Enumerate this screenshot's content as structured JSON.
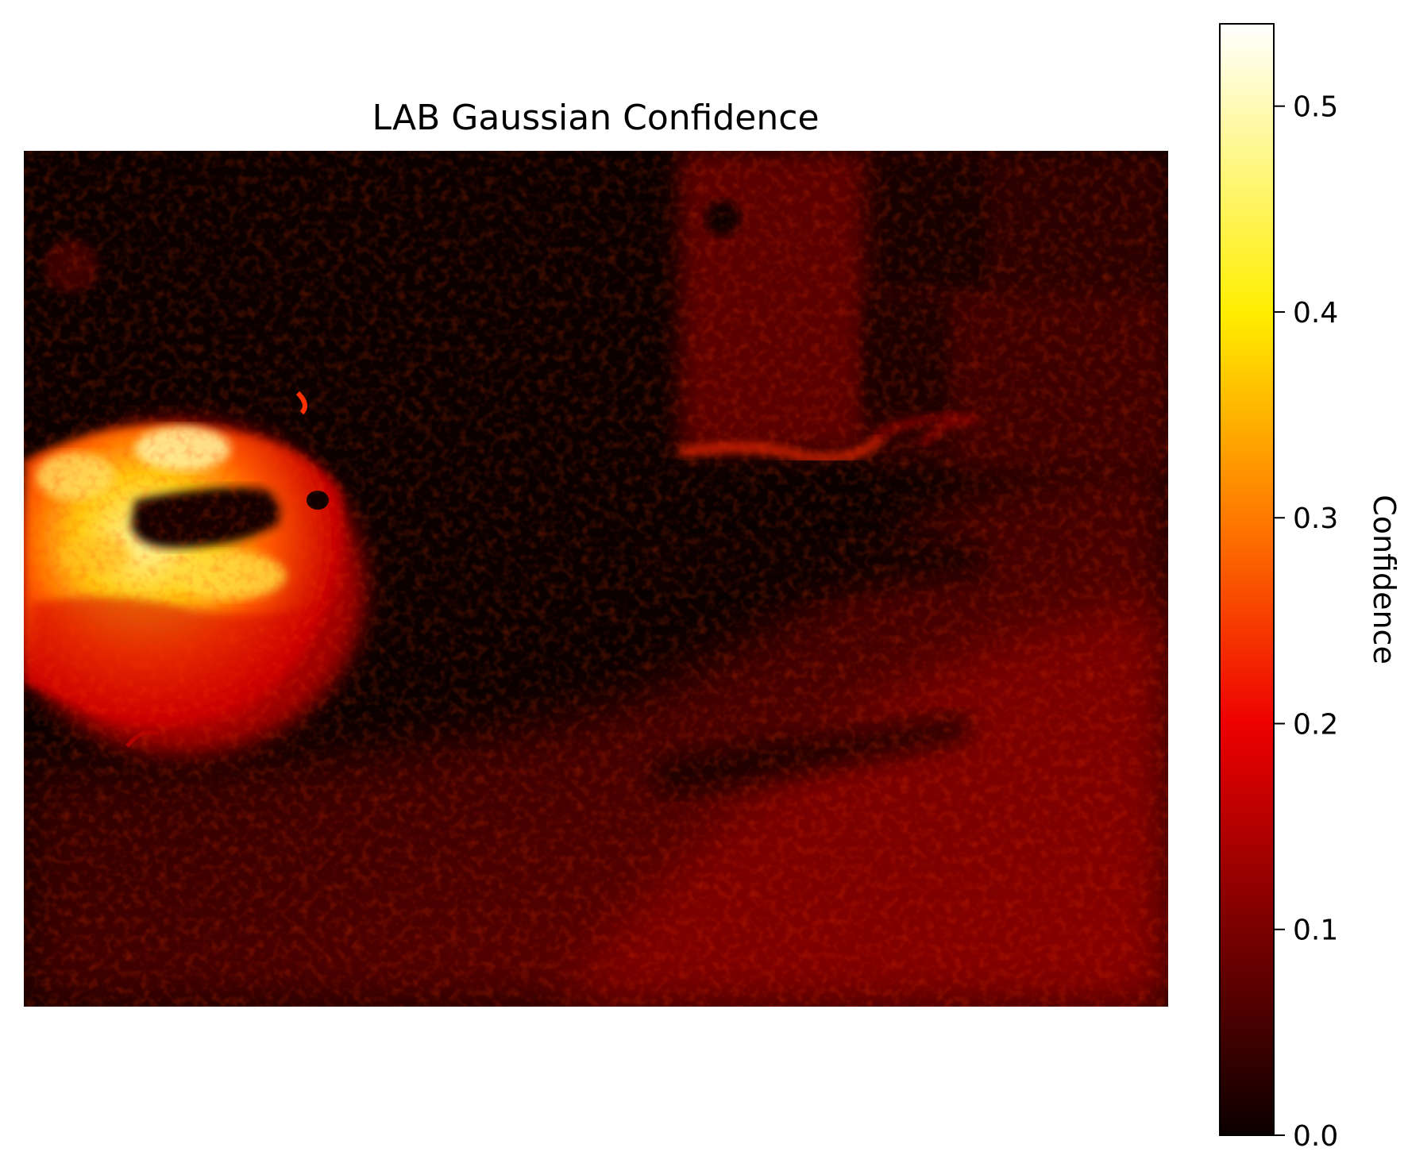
{
  "chart_data": {
    "type": "heatmap",
    "title": "LAB Gaussian Confidence",
    "colormap": "hot",
    "axes_visible": false,
    "colorbar": {
      "label": "Confidence",
      "range": [
        0.0,
        0.54
      ],
      "ticks": [
        0.0,
        0.1,
        0.2,
        0.3,
        0.4,
        0.5
      ],
      "tick_labels": [
        "0.0",
        "0.1",
        "0.2",
        "0.3",
        "0.4",
        "0.5"
      ],
      "stops": [
        {
          "value": 0.0,
          "color": "#0b0000"
        },
        {
          "value": 0.1,
          "color": "#7a0000"
        },
        {
          "value": 0.2,
          "color": "#ee0000"
        },
        {
          "value": 0.3,
          "color": "#ff7a00"
        },
        {
          "value": 0.4,
          "color": "#ffee00"
        },
        {
          "value": 0.54,
          "color": "#ffffff"
        }
      ]
    },
    "regions": [
      {
        "name": "left-blob",
        "peak_value": 0.52,
        "mean_value": 0.3
      },
      {
        "name": "upper-right-structure",
        "mean_value": 0.1
      },
      {
        "name": "lower-right-texture",
        "mean_value": 0.08
      },
      {
        "name": "background",
        "mean_value": 0.01
      }
    ]
  }
}
